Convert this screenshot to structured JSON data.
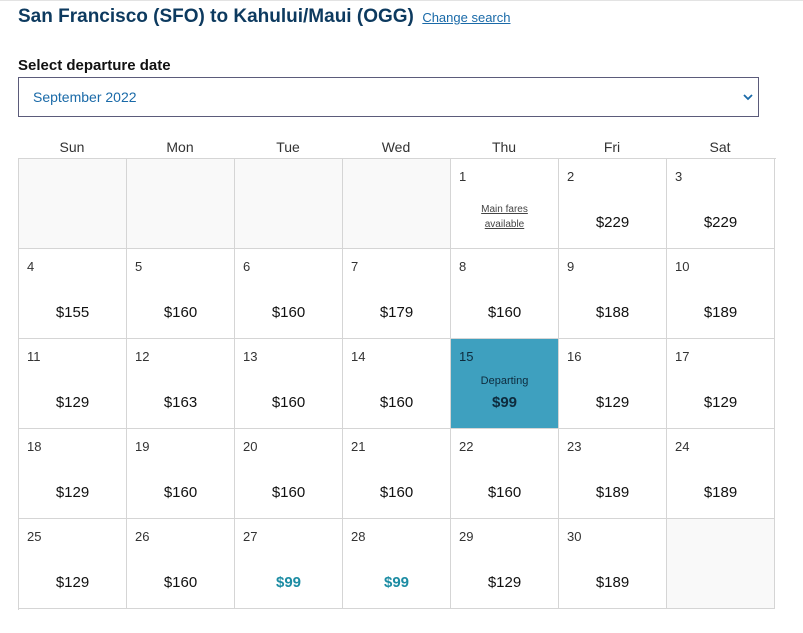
{
  "header": {
    "title": "San Francisco (SFO) to Kahului/Maui (OGG)",
    "change_link": "Change search"
  },
  "departure": {
    "label": "Select departure date",
    "selected_month": "September 2022"
  },
  "weekdays": [
    "Sun",
    "Mon",
    "Tue",
    "Wed",
    "Thu",
    "Fri",
    "Sat"
  ],
  "cells": [
    {
      "empty": true
    },
    {
      "empty": true
    },
    {
      "empty": true
    },
    {
      "empty": true
    },
    {
      "day": "1",
      "note": "Main fares available"
    },
    {
      "day": "2",
      "price": "$229"
    },
    {
      "day": "3",
      "price": "$229"
    },
    {
      "day": "4",
      "price": "$155"
    },
    {
      "day": "5",
      "price": "$160"
    },
    {
      "day": "6",
      "price": "$160"
    },
    {
      "day": "7",
      "price": "$179"
    },
    {
      "day": "8",
      "price": "$160"
    },
    {
      "day": "9",
      "price": "$188"
    },
    {
      "day": "10",
      "price": "$189"
    },
    {
      "day": "11",
      "price": "$129"
    },
    {
      "day": "12",
      "price": "$163"
    },
    {
      "day": "13",
      "price": "$160"
    },
    {
      "day": "14",
      "price": "$160"
    },
    {
      "day": "15",
      "price": "$99",
      "selected": true,
      "sublabel": "Departing"
    },
    {
      "day": "16",
      "price": "$129"
    },
    {
      "day": "17",
      "price": "$129"
    },
    {
      "day": "18",
      "price": "$129"
    },
    {
      "day": "19",
      "price": "$160"
    },
    {
      "day": "20",
      "price": "$160"
    },
    {
      "day": "21",
      "price": "$160"
    },
    {
      "day": "22",
      "price": "$160"
    },
    {
      "day": "23",
      "price": "$189"
    },
    {
      "day": "24",
      "price": "$189"
    },
    {
      "day": "25",
      "price": "$129"
    },
    {
      "day": "26",
      "price": "$160"
    },
    {
      "day": "27",
      "price": "$99",
      "low": true
    },
    {
      "day": "28",
      "price": "$99",
      "low": true
    },
    {
      "day": "29",
      "price": "$129"
    },
    {
      "day": "30",
      "price": "$189"
    },
    {
      "empty": true
    }
  ],
  "colors": {
    "title": "#0d3a5f",
    "link": "#1a6aa8",
    "selected_bg": "#3ea0bf",
    "low_fare": "#1c8ca3"
  },
  "icons": {
    "select_arrow": "chevron-down-icon"
  }
}
